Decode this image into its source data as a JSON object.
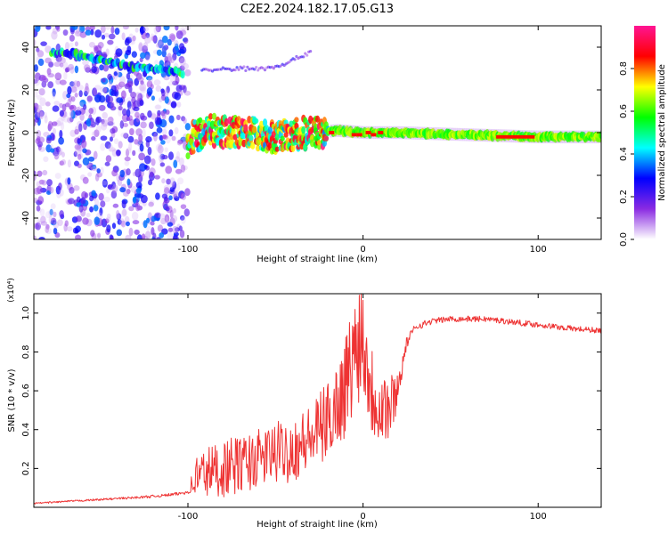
{
  "figure_title": "C2E2.2024.182.17.05.G13",
  "chart_data": [
    {
      "type": "heatmap",
      "xlabel": "Height of straight line (km)",
      "ylabel": "Frequency (Hz)",
      "xlim": [
        -188,
        136
      ],
      "ylim": [
        -50,
        50
      ],
      "x_ticks": [
        -100,
        0,
        100
      ],
      "x_tick_labels": [
        "-100",
        "0",
        "100"
      ],
      "y_ticks": [
        -40,
        -20,
        0,
        20,
        40
      ],
      "y_tick_labels": [
        "-40",
        "-20",
        "0",
        "20",
        "40"
      ],
      "grid": false,
      "colorbar": {
        "label": "Normalized spectral amplitude",
        "range": [
          0,
          1
        ],
        "ticks": [
          0.0,
          0.2,
          0.4,
          0.6,
          0.8
        ],
        "tick_labels": [
          "0.0",
          "0.2",
          "0.4",
          "0.6",
          "0.8"
        ],
        "colors": [
          "#ffffff",
          "#8a2be2",
          "#0000ff",
          "#00ffff",
          "#00ff00",
          "#ffff00",
          "#ff0000",
          "#ff1493"
        ]
      },
      "features": [
        {
          "name": "noise field",
          "x_range": [
            -188,
            -100
          ],
          "y_range": [
            -50,
            50
          ],
          "amplitude": 0.15
        },
        {
          "name": "upper drifting band",
          "points": [
            [
              -178,
              38
            ],
            [
              -160,
              36
            ],
            [
              -140,
              32
            ],
            [
              -120,
              30
            ],
            [
              -103,
              28
            ]
          ],
          "amplitude": 0.45
        },
        {
          "name": "faint upper trace",
          "points": [
            [
              -92,
              29
            ],
            [
              -70,
              30
            ],
            [
              -55,
              30
            ],
            [
              -42,
              33
            ],
            [
              -30,
              38
            ]
          ],
          "amplitude": 0.2
        },
        {
          "name": "main band",
          "points": [
            [
              -100,
              -4
            ],
            [
              -90,
              1
            ],
            [
              -70,
              0
            ],
            [
              -50,
              -2
            ],
            [
              -30,
              0
            ],
            [
              -15,
              1
            ],
            [
              0,
              0
            ],
            [
              20,
              0
            ],
            [
              60,
              -1
            ],
            [
              100,
              -2
            ],
            [
              136,
              -2
            ]
          ],
          "amplitude": 0.7
        }
      ]
    },
    {
      "type": "line",
      "xlabel": "Height of straight line (km)",
      "ylabel": "SNR (10 * v/v)",
      "y_scale_label": "(x10⁴)",
      "xlim": [
        -188,
        136
      ],
      "ylim": [
        0,
        1.1
      ],
      "x_ticks": [
        -100,
        0,
        100
      ],
      "x_tick_labels": [
        "-100",
        "0",
        "100"
      ],
      "y_ticks": [
        0.2,
        0.4,
        0.6,
        0.8,
        1.0
      ],
      "y_tick_labels": [
        "0.2",
        "0.4",
        "0.6",
        "0.8",
        "1.0"
      ],
      "grid": false,
      "series": [
        {
          "color": "#ee3333",
          "x": [
            -188,
            -170,
            -150,
            -130,
            -115,
            -105,
            -100,
            -95,
            -90,
            -80,
            -70,
            -60,
            -50,
            -40,
            -30,
            -20,
            -12,
            -6,
            -2,
            0,
            5,
            10,
            15,
            20,
            25,
            30,
            40,
            50,
            60,
            70,
            80,
            90,
            100,
            110,
            120,
            136
          ],
          "y": [
            0.02,
            0.03,
            0.04,
            0.05,
            0.06,
            0.07,
            0.08,
            0.16,
            0.18,
            0.2,
            0.22,
            0.25,
            0.28,
            0.3,
            0.35,
            0.45,
            0.58,
            0.75,
            0.9,
            0.88,
            0.6,
            0.55,
            0.5,
            0.62,
            0.85,
            0.93,
            0.96,
            0.97,
            0.97,
            0.97,
            0.96,
            0.95,
            0.94,
            0.93,
            0.92,
            0.91
          ],
          "noise_amplitude": [
            0.004,
            0.004,
            0.005,
            0.006,
            0.007,
            0.008,
            0.01,
            0.12,
            0.14,
            0.15,
            0.15,
            0.15,
            0.16,
            0.17,
            0.18,
            0.2,
            0.25,
            0.3,
            0.35,
            0.3,
            0.25,
            0.25,
            0.2,
            0.08,
            0.03,
            0.02,
            0.015,
            0.015,
            0.015,
            0.015,
            0.015,
            0.015,
            0.015,
            0.015,
            0.015,
            0.015
          ]
        }
      ]
    }
  ]
}
